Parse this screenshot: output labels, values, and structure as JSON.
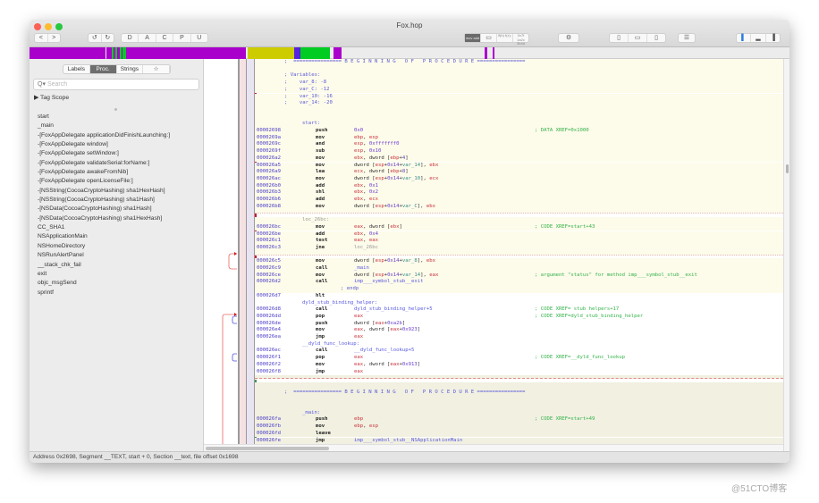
{
  "window": {
    "title": "Fox.hop"
  },
  "toolbar": {
    "nav": [
      "<",
      ">"
    ],
    "history": [
      "↺",
      "↻"
    ],
    "modes": [
      "D",
      "A",
      "C",
      "P",
      "U"
    ],
    "view_modes": [
      "mov add",
      "▭",
      "if(b) f(x);",
      "0x7f 1a2c 3b4d"
    ],
    "cpu_icon": "⚙",
    "panes": [
      "▯",
      "▭",
      "▯"
    ],
    "inspector": "☰",
    "layout": [
      "▌",
      "▂",
      "▐"
    ]
  },
  "segment_colors": {
    "code": "#aa00cc",
    "data": "#cccc00",
    "ext": "#5522dd",
    "string": "#00cc22"
  },
  "sidebar": {
    "tabs": [
      {
        "label": "Labels"
      },
      {
        "label": "Proc."
      },
      {
        "label": "Strings"
      },
      {
        "label": "☆"
      }
    ],
    "active_tab": "Proc.",
    "search_placeholder": "Search",
    "tag_scope": "Tag Scope",
    "procedures": [
      "start",
      "_main",
      "-[FoxAppDelegate applicationDidFinishLaunching:]",
      "-[FoxAppDelegate window]",
      "-[FoxAppDelegate setWindow:]",
      "-[FoxAppDelegate validateSerial:forName:]",
      "-[FoxAppDelegate awakeFromNib]",
      "-[FoxAppDelegate openLicenseFile:]",
      "-[NSString(CocoaCryptoHashing) sha1HexHash]",
      "-[NSString(CocoaCryptoHashing) sha1Hash]",
      "-[NSData(CocoaCryptoHashing) sha1Hash]",
      "-[NSData(CocoaCryptoHashing) sha1HexHash]",
      "CC_SHA1",
      "NSApplicationMain",
      "NSHomeDirectory",
      "NSRunAlertPanel",
      "__stack_chk_fail",
      "exit",
      "objc_msgSend",
      "sprintf"
    ]
  },
  "code": [
    {
      "k": "c",
      "bg": "p1",
      "t": ";  ================ B E G I N N I N G   O F   P R O C E D U R E ================"
    },
    {
      "k": "b",
      "bg": "p1"
    },
    {
      "k": "c",
      "bg": "p1",
      "t": "; Variables:"
    },
    {
      "k": "c",
      "bg": "p1",
      "t": ";    var_8: -8"
    },
    {
      "k": "c",
      "bg": "p1",
      "t": ";    var_C: -12"
    },
    {
      "k": "c",
      "bg": "p1",
      "t": ";    var_10: -16"
    },
    {
      "k": "c",
      "bg": "p1",
      "t": ";    var_14: -20"
    },
    {
      "k": "b",
      "bg": "p1"
    },
    {
      "k": "b",
      "bg": "p1"
    },
    {
      "k": "l",
      "bg": "p1",
      "t": "start:"
    },
    {
      "k": "i",
      "bg": "p1",
      "a": "00002698",
      "m": "push",
      "o": [
        [
          "0x0",
          "n"
        ]
      ],
      "c": "; DATA XREF=0x1000"
    },
    {
      "k": "i",
      "bg": "p1",
      "a": "0000269a",
      "m": "mov",
      "o": [
        [
          "ebp",
          "r"
        ],
        [
          ", ",
          "t"
        ],
        [
          "esp",
          "r"
        ]
      ]
    },
    {
      "k": "i",
      "bg": "p1",
      "a": "0000269c",
      "m": "and",
      "o": [
        [
          "esp",
          "r"
        ],
        [
          ", ",
          "t"
        ],
        [
          "0xfffffff0",
          "n"
        ]
      ]
    },
    {
      "k": "i",
      "bg": "p1",
      "a": "0000269f",
      "m": "sub",
      "o": [
        [
          "esp",
          "r"
        ],
        [
          ", ",
          "t"
        ],
        [
          "0x10",
          "n"
        ]
      ]
    },
    {
      "k": "i",
      "bg": "p1",
      "a": "000026a2",
      "m": "mov",
      "o": [
        [
          "ebx",
          "r"
        ],
        [
          ", dword [",
          "t"
        ],
        [
          "ebp",
          "r"
        ],
        [
          "+",
          "t"
        ],
        [
          "4",
          "n"
        ],
        [
          "]",
          "t"
        ]
      ]
    },
    {
      "k": "i",
      "bg": "p1",
      "a": "000026a5",
      "m": "mov",
      "o": [
        [
          "dword [",
          "t"
        ],
        [
          "esp",
          "r"
        ],
        [
          "+",
          "t"
        ],
        [
          "0x14",
          "n"
        ],
        [
          "+",
          "t"
        ],
        [
          "var_14",
          "v"
        ],
        [
          "], ",
          "t"
        ],
        [
          "ebx",
          "r"
        ]
      ]
    },
    {
      "k": "i",
      "bg": "p1",
      "a": "000026a9",
      "m": "lea",
      "o": [
        [
          "ecx",
          "r"
        ],
        [
          ", dword [",
          "t"
        ],
        [
          "ebp",
          "r"
        ],
        [
          "+",
          "t"
        ],
        [
          "8",
          "n"
        ],
        [
          "]",
          "t"
        ]
      ]
    },
    {
      "k": "i",
      "bg": "p1",
      "a": "000026ac",
      "m": "mov",
      "o": [
        [
          "dword [",
          "t"
        ],
        [
          "esp",
          "r"
        ],
        [
          "+",
          "t"
        ],
        [
          "0x14",
          "n"
        ],
        [
          "+",
          "t"
        ],
        [
          "var_10",
          "v"
        ],
        [
          "], ",
          "t"
        ],
        [
          "ecx",
          "r"
        ]
      ]
    },
    {
      "k": "i",
      "bg": "p1",
      "a": "000026b0",
      "m": "add",
      "o": [
        [
          "ebx",
          "r"
        ],
        [
          ", ",
          "t"
        ],
        [
          "0x1",
          "n"
        ]
      ]
    },
    {
      "k": "i",
      "bg": "p1",
      "a": "000026b3",
      "m": "shl",
      "o": [
        [
          "ebx",
          "r"
        ],
        [
          ", ",
          "t"
        ],
        [
          "0x2",
          "n"
        ]
      ]
    },
    {
      "k": "i",
      "bg": "p1",
      "a": "000026b6",
      "m": "add",
      "o": [
        [
          "ebx",
          "r"
        ],
        [
          ", ",
          "t"
        ],
        [
          "ecx",
          "r"
        ]
      ]
    },
    {
      "k": "i",
      "bg": "p1",
      "a": "000026b8",
      "m": "mov",
      "o": [
        [
          "dword [",
          "t"
        ],
        [
          "esp",
          "r"
        ],
        [
          "+",
          "t"
        ],
        [
          "0x14",
          "n"
        ],
        [
          "+",
          "t"
        ],
        [
          "var_C",
          "v"
        ],
        [
          "], ",
          "t"
        ],
        [
          "ebx",
          "r"
        ]
      ]
    },
    {
      "k": "sd",
      "bg": "p1"
    },
    {
      "k": "lg",
      "bg": "p1",
      "t": "loc_26bc:"
    },
    {
      "k": "i",
      "bg": "p1",
      "a": "000026bc",
      "m": "mov",
      "o": [
        [
          "eax",
          "r"
        ],
        [
          ", dword [",
          "t"
        ],
        [
          "ebx",
          "r"
        ],
        [
          "]",
          "t"
        ]
      ],
      "c": "; CODE XREF=start+43"
    },
    {
      "k": "i",
      "bg": "p1",
      "a": "000026be",
      "m": "add",
      "o": [
        [
          "ebx",
          "r"
        ],
        [
          ", ",
          "t"
        ],
        [
          "0x4",
          "n"
        ]
      ]
    },
    {
      "k": "i",
      "bg": "p1",
      "a": "000026c1",
      "m": "test",
      "o": [
        [
          "eax",
          "r"
        ],
        [
          ", ",
          "t"
        ],
        [
          "eax",
          "r"
        ]
      ]
    },
    {
      "k": "i",
      "bg": "p1",
      "a": "000026c3",
      "m": "jne",
      "o": [
        [
          "loc_26bc",
          "g"
        ]
      ]
    },
    {
      "k": "sd",
      "bg": "p1"
    },
    {
      "k": "i",
      "bg": "p1",
      "a": "000026c5",
      "m": "mov",
      "o": [
        [
          "dword [",
          "t"
        ],
        [
          "esp",
          "r"
        ],
        [
          "+",
          "t"
        ],
        [
          "0x14",
          "n"
        ],
        [
          "+",
          "t"
        ],
        [
          "var_8",
          "v"
        ],
        [
          "], ",
          "t"
        ],
        [
          "ebx",
          "r"
        ]
      ]
    },
    {
      "k": "i",
      "bg": "p1",
      "a": "000026c9",
      "m": "call",
      "o": [
        [
          "_main",
          "s"
        ]
      ]
    },
    {
      "k": "i",
      "bg": "p1",
      "a": "000026ce",
      "m": "mov",
      "o": [
        [
          "dword [",
          "t"
        ],
        [
          "esp",
          "r"
        ],
        [
          "+",
          "t"
        ],
        [
          "0x14",
          "n"
        ],
        [
          "+",
          "t"
        ],
        [
          "var_14",
          "v"
        ],
        [
          "], ",
          "t"
        ],
        [
          "eax",
          "r"
        ]
      ],
      "c": "; argument \"status\" for method imp___symbol_stub__exit"
    },
    {
      "k": "i",
      "bg": "p1",
      "a": "000026d2",
      "m": "call",
      "o": [
        [
          "imp___symbol_stub__exit",
          "s"
        ]
      ]
    },
    {
      "k": "e",
      "bg": "p1",
      "t": "; endp"
    },
    {
      "k": "i",
      "bg": "w",
      "a": "000026d7",
      "m": "hlt",
      "o": []
    },
    {
      "k": "l",
      "bg": "w",
      "t": "dyld_stub_binding_helper:"
    },
    {
      "k": "i",
      "bg": "w",
      "a": "000026d8",
      "m": "call",
      "o": [
        [
          "dyld_stub_binding_helper+5",
          "s"
        ]
      ],
      "c": "; CODE XREF= stub helpers+17"
    },
    {
      "k": "i",
      "bg": "w",
      "a": "000026dd",
      "m": "pop",
      "o": [
        [
          "eax",
          "r"
        ]
      ],
      "c": "; CODE XREF=dyld_stub_binding_helper"
    },
    {
      "k": "i",
      "bg": "w",
      "a": "000026de",
      "m": "push",
      "o": [
        [
          "dword [",
          "t"
        ],
        [
          "eax",
          "r"
        ],
        [
          "+",
          "t"
        ],
        [
          "0xa2b",
          "n"
        ],
        [
          "]",
          "t"
        ]
      ]
    },
    {
      "k": "i",
      "bg": "w",
      "a": "000026e4",
      "m": "mov",
      "o": [
        [
          "eax",
          "r"
        ],
        [
          ", dword [",
          "t"
        ],
        [
          "eax",
          "r"
        ],
        [
          "+",
          "t"
        ],
        [
          "0x923",
          "n"
        ],
        [
          "]",
          "t"
        ]
      ]
    },
    {
      "k": "i",
      "bg": "w",
      "a": "000026ea",
      "m": "jmp",
      "o": [
        [
          "eax",
          "r"
        ]
      ]
    },
    {
      "k": "l",
      "bg": "w",
      "t": "__dyld_func_lookup:"
    },
    {
      "k": "i",
      "bg": "w",
      "a": "000026ec",
      "m": "call",
      "o": [
        [
          "__dyld_func_lookup+5",
          "s"
        ]
      ]
    },
    {
      "k": "i",
      "bg": "w",
      "a": "000026f1",
      "m": "pop",
      "o": [
        [
          "eax",
          "r"
        ]
      ],
      "c": "; CODE XREF=__dyld_func_lookup"
    },
    {
      "k": "i",
      "bg": "w",
      "a": "000026f2",
      "m": "mov",
      "o": [
        [
          "eax",
          "r"
        ],
        [
          ", dword [",
          "t"
        ],
        [
          "eax",
          "r"
        ],
        [
          "+",
          "t"
        ],
        [
          "0x913",
          "n"
        ],
        [
          "]",
          "t"
        ]
      ]
    },
    {
      "k": "i",
      "bg": "w",
      "a": "000026f8",
      "m": "jmp",
      "o": [
        [
          "eax",
          "r"
        ]
      ]
    },
    {
      "k": "sh",
      "bg": "p2"
    },
    {
      "k": "b",
      "bg": "p2"
    },
    {
      "k": "c",
      "bg": "p2",
      "t": ";  ================ B E G I N N I N G   O F   P R O C E D U R E ================"
    },
    {
      "k": "b",
      "bg": "p2"
    },
    {
      "k": "b",
      "bg": "p2"
    },
    {
      "k": "l",
      "bg": "p2",
      "t": "_main:"
    },
    {
      "k": "i",
      "bg": "p2",
      "a": "000026fa",
      "m": "push",
      "o": [
        [
          "ebp",
          "r"
        ]
      ],
      "c": "; CODE XREF=start+49"
    },
    {
      "k": "i",
      "bg": "p2",
      "a": "000026fb",
      "m": "mov",
      "o": [
        [
          "ebp",
          "r"
        ],
        [
          ", ",
          "t"
        ],
        [
          "esp",
          "r"
        ]
      ]
    },
    {
      "k": "i",
      "bg": "p2",
      "a": "000026fd",
      "m": "leave",
      "o": []
    },
    {
      "k": "i",
      "bg": "p2",
      "a": "000026fe",
      "m": "jmp",
      "o": [
        [
          "imp___symbol_stub__NSApplicationMain",
          "s"
        ]
      ]
    }
  ],
  "status": "Address 0x2698, Segment __TEXT, start + 0, Section __text, file offset 0x1698",
  "watermark": "@51CTO博客"
}
